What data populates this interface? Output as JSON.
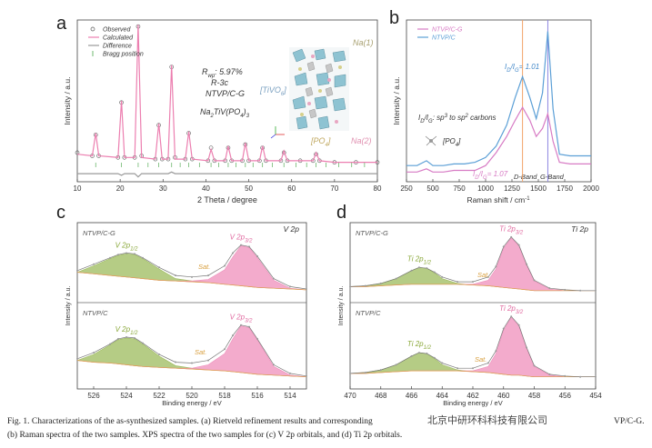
{
  "chart_data": [
    {
      "type": "line",
      "panel": "a",
      "xlabel": "2 Theta / degree",
      "ylabel": "Intensity / a.u.",
      "xlim": [
        10,
        80
      ],
      "xticks": [
        10,
        20,
        30,
        40,
        50,
        60,
        70,
        80
      ],
      "ylim": [
        0,
        100
      ],
      "x": [
        10,
        13.5,
        14.3,
        15,
        19.5,
        20.3,
        21,
        23.4,
        24.2,
        25,
        28.2,
        29,
        29.8,
        31.2,
        32,
        32.8,
        35.2,
        36,
        36.8,
        40.5,
        41.2,
        42,
        44.5,
        45.2,
        46,
        48.5,
        49.2,
        50,
        52.5,
        53.2,
        54,
        57.5,
        58.2,
        59,
        62,
        65,
        65.7,
        66.5,
        70,
        75,
        80
      ],
      "series": [
        {
          "name": "Observed",
          "color": "#555555",
          "marker": "circle",
          "values": [
            18,
            16,
            29,
            16,
            15,
            49,
            15,
            15,
            96,
            16,
            14,
            35,
            14,
            14,
            71,
            15,
            14,
            30,
            14,
            13,
            21,
            13,
            13,
            21,
            13,
            13,
            23,
            13,
            13,
            21,
            13,
            13,
            18,
            13,
            13,
            13,
            17,
            13,
            12,
            12,
            12
          ]
        },
        {
          "name": "Calculated",
          "color": "#ec7fb0",
          "values": [
            17,
            16,
            30,
            16,
            15,
            50,
            15,
            15,
            97,
            15,
            14,
            36,
            14,
            14,
            72,
            14,
            14,
            31,
            14,
            13,
            20,
            13,
            13,
            22,
            13,
            13,
            24,
            13,
            13,
            22,
            13,
            13,
            19,
            13,
            13,
            13,
            18,
            13,
            12,
            12,
            12
          ]
        },
        {
          "name": "Difference",
          "color": "#9a9a9a",
          "values": [
            5,
            5,
            5,
            5,
            5,
            4,
            5,
            5,
            3,
            5,
            5,
            5,
            5,
            5,
            6,
            5,
            5,
            5,
            5,
            5,
            5,
            5,
            5,
            5,
            5,
            5,
            5,
            5,
            5,
            5,
            5,
            5,
            5,
            5,
            5,
            5,
            5,
            5,
            5,
            5,
            5
          ]
        }
      ],
      "bragg": {
        "name": "Bragg position",
        "color": "#6fb86f",
        "x": [
          14.3,
          20.3,
          24.2,
          26.5,
          29,
          32,
          34,
          36,
          38.5,
          41.2,
          43,
          45.2,
          47,
          49.2,
          51,
          53.2,
          55.5,
          58.2,
          61,
          63.5,
          65.7,
          68,
          71,
          74,
          77
        ]
      },
      "annotations": {
        "rwp": [
          "R",
          "wp",
          ": 5.97%"
        ],
        "group": "R-3c",
        "sample": "NTVP/C-G",
        "formula": [
          "Na",
          "2",
          "TiV(PO",
          "4",
          ")",
          "3"
        ],
        "na1": "Na(1)",
        "tivo": [
          "[TiVO",
          "6",
          "]"
        ],
        "po4": [
          "[PO",
          "4",
          "]"
        ],
        "na2": "Na(2)"
      }
    },
    {
      "type": "line",
      "panel": "b",
      "xlabel": [
        "Raman shift / cm",
        "-1"
      ],
      "ylabel": "Intensity / a.u.",
      "xlim": [
        250,
        2000
      ],
      "xticks": [
        250,
        500,
        750,
        1000,
        1250,
        1500,
        1750,
        2000
      ],
      "ylim": [
        0,
        100
      ],
      "x": [
        250,
        350,
        440,
        500,
        600,
        700,
        800,
        900,
        1000,
        1100,
        1200,
        1280,
        1350,
        1420,
        1480,
        1540,
        1590,
        1640,
        1700,
        1800,
        1900,
        2000
      ],
      "series": [
        {
          "name": "NTVP/C-G",
          "color": "#d77bc4",
          "values": [
            6,
            6,
            8,
            6,
            6,
            7,
            7,
            7,
            10,
            18,
            28,
            38,
            46,
            38,
            28,
            33,
            42,
            25,
            12,
            11,
            11,
            11
          ]
        },
        {
          "name": "NTVP/C",
          "color": "#5b9fd6",
          "values": [
            10,
            10,
            13,
            10,
            10,
            11,
            11,
            12,
            15,
            22,
            35,
            52,
            65,
            52,
            39,
            55,
            93,
            45,
            17,
            16,
            16,
            16
          ]
        }
      ],
      "vlines": [
        {
          "value": 1350,
          "color": "#f2a46a"
        },
        {
          "value": 1590,
          "color": "#8d86e0"
        }
      ],
      "annotations": {
        "ratio_c": [
          "I",
          "D",
          "/I",
          "G",
          "= 1.01"
        ],
        "ratio_cg": [
          "I",
          "D",
          "/I",
          "G",
          "= 1.07"
        ],
        "meaning": [
          "I",
          "D",
          "/I",
          "G",
          ": sp",
          "3",
          " to sp",
          "2",
          " carbons"
        ],
        "po4": [
          "[PO",
          "4",
          "]"
        ],
        "d_band": "D-Band",
        "g_band": "G-Band"
      }
    },
    {
      "type": "area",
      "panel": "c",
      "title": "V 2p",
      "xlabel": "Binding energy / eV",
      "ylabel": "Intensity / a.u.",
      "xlim": [
        527,
        513
      ],
      "xticks": [
        526,
        524,
        522,
        520,
        518,
        516,
        514
      ],
      "ylim": [
        0,
        100
      ],
      "x": [
        527,
        526,
        525,
        524.5,
        524,
        523.5,
        523,
        522,
        521,
        520,
        519,
        518,
        517.5,
        517,
        516.5,
        516,
        515,
        514,
        513
      ],
      "subplots": [
        {
          "name": "NTVP/C-G",
          "sat": "Sat.",
          "envelope": [
            40,
            48,
            56,
            60,
            62,
            61,
            56,
            44,
            34,
            32,
            34,
            46,
            62,
            72,
            70,
            58,
            30,
            20,
            17
          ],
          "baseline": [
            38,
            36,
            34,
            33,
            32,
            31,
            30,
            28,
            27,
            26,
            25,
            23,
            22,
            21,
            20,
            19,
            18,
            17,
            16
          ],
          "peaks": [
            {
              "label": [
                "V 2p",
                "1/2"
              ],
              "color": "#9cbb5c",
              "values": [
                38,
                46,
                55,
                59,
                61,
                60,
                55,
                42,
                30,
                27,
                25,
                23,
                22,
                21,
                20,
                19,
                18,
                17,
                16
              ]
            },
            {
              "label": [
                "V 2p",
                "3/2"
              ],
              "color": "#ef8fbb",
              "values": [
                38,
                36,
                34,
                33,
                32,
                31,
                30,
                28,
                27,
                27,
                29,
                41,
                57,
                71,
                69,
                56,
                28,
                18,
                16
              ]
            }
          ]
        },
        {
          "name": "NTVP/C",
          "sat": "Sat.",
          "envelope": [
            35,
            42,
            52,
            58,
            60,
            59,
            53,
            40,
            31,
            30,
            33,
            46,
            62,
            74,
            72,
            58,
            28,
            18,
            15
          ],
          "baseline": [
            33,
            31,
            30,
            29,
            28,
            27,
            26,
            25,
            24,
            23,
            22,
            21,
            20,
            19,
            18,
            17,
            16,
            15,
            14
          ],
          "peaks": [
            {
              "label": [
                "V 2p",
                "1/2"
              ],
              "color": "#9cbb5c",
              "values": [
                33,
                40,
                51,
                57,
                59,
                58,
                52,
                38,
                27,
                24,
                22,
                21,
                20,
                19,
                18,
                17,
                16,
                15,
                14
              ]
            },
            {
              "label": [
                "V 2p",
                "3/2"
              ],
              "color": "#ef8fbb",
              "values": [
                33,
                31,
                30,
                29,
                28,
                27,
                26,
                25,
                24,
                24,
                28,
                41,
                58,
                73,
                71,
                57,
                26,
                16,
                14
              ]
            }
          ]
        }
      ]
    },
    {
      "type": "area",
      "panel": "d",
      "title": "Ti 2p",
      "xlabel": "Binding energy / eV",
      "ylabel": "Intensity / a.u.",
      "xlim": [
        470,
        454
      ],
      "xticks": [
        470,
        468,
        466,
        464,
        462,
        460,
        458,
        456,
        454
      ],
      "ylim": [
        0,
        100
      ],
      "x": [
        470,
        469,
        468,
        467,
        466,
        465.5,
        465,
        464.5,
        464,
        463,
        462,
        461,
        460.5,
        460,
        459.5,
        459,
        458.5,
        458,
        457,
        456,
        455,
        454
      ],
      "subplots": [
        {
          "name": "NTVP/C-G",
          "sat": "Sat.",
          "envelope": [
            20,
            21,
            24,
            30,
            40,
            44,
            43,
            38,
            32,
            26,
            26,
            32,
            45,
            70,
            82,
            72,
            48,
            28,
            18,
            16,
            15,
            15
          ],
          "baseline": [
            20,
            20,
            21,
            22,
            23,
            23,
            23,
            23,
            23,
            23,
            22,
            21,
            20,
            19,
            18,
            17,
            16,
            15,
            15,
            15,
            15,
            15
          ],
          "peaks": [
            {
              "label": [
                "Ti 2p",
                "1/2"
              ],
              "color": "#9cbb5c",
              "values": [
                20,
                21,
                24,
                30,
                40,
                44,
                43,
                37,
                30,
                24,
                22,
                21,
                20,
                19,
                18,
                17,
                16,
                15,
                15,
                15,
                15,
                15
              ]
            },
            {
              "label": [
                "Ti 2p",
                "3/2"
              ],
              "color": "#ef8fbb",
              "values": [
                20,
                20,
                21,
                22,
                23,
                23,
                23,
                23,
                23,
                23,
                23,
                28,
                42,
                68,
                81,
                71,
                47,
                27,
                17,
                15,
                15,
                15
              ]
            }
          ]
        },
        {
          "name": "NTVP/C",
          "sat": "Sat.",
          "envelope": [
            18,
            19,
            22,
            28,
            38,
            42,
            41,
            36,
            30,
            24,
            24,
            30,
            44,
            70,
            84,
            74,
            48,
            27,
            17,
            15,
            14,
            14
          ],
          "baseline": [
            18,
            18,
            19,
            20,
            21,
            21,
            21,
            21,
            21,
            21,
            20,
            19,
            18,
            17,
            16,
            16,
            15,
            14,
            14,
            14,
            14,
            14
          ],
          "peaks": [
            {
              "label": [
                "Ti 2p",
                "1/2"
              ],
              "color": "#9cbb5c",
              "values": [
                18,
                19,
                22,
                28,
                38,
                42,
                41,
                35,
                28,
                22,
                20,
                19,
                18,
                17,
                16,
                16,
                15,
                14,
                14,
                14,
                14,
                14
              ]
            },
            {
              "label": [
                "Ti 2p",
                "3/2"
              ],
              "color": "#ef8fbb",
              "values": [
                18,
                18,
                19,
                20,
                21,
                21,
                21,
                21,
                21,
                21,
                21,
                26,
                41,
                68,
                83,
                73,
                47,
                26,
                16,
                14,
                14,
                14
              ]
            }
          ]
        }
      ]
    }
  ],
  "caption": {
    "line1": "Fig. 1. Characterizations of the as-synthesized samples. (a) Rietveld refinement results and corresponding",
    "line1_end": "VP/C-G.",
    "line2": "(b) Raman spectra of the two samples. XPS spectra of the two samples for (c) V 2p orbitals, and (d) Ti 2p orbitals."
  },
  "watermark": "北京中研环科科技有限公司"
}
